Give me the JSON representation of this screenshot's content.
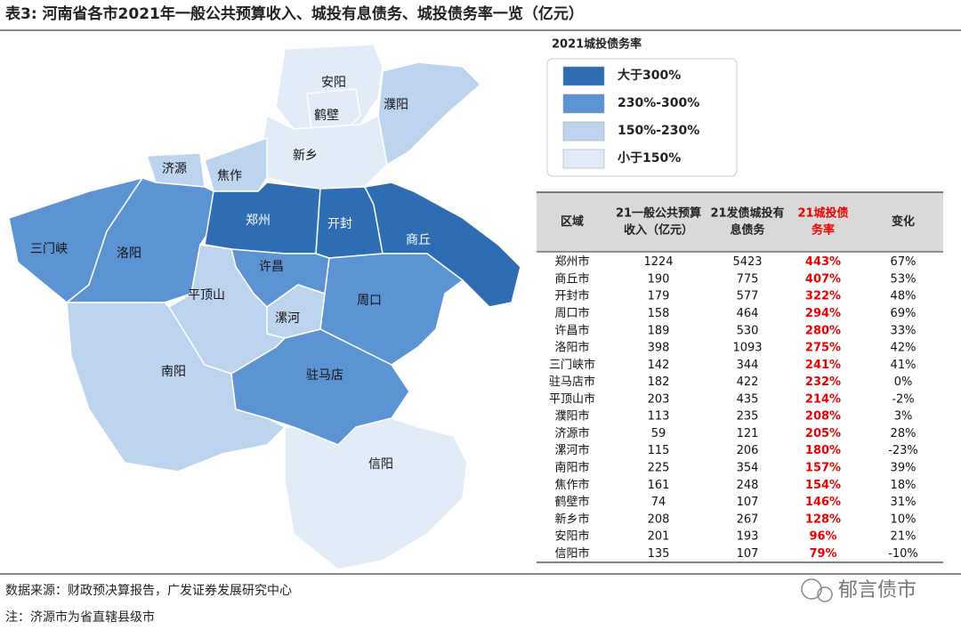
{
  "title": "表3: 河南省各市2021年一般公共预算收入、城投有息债务、城投债务率一览（亿元）",
  "legend": {
    "title": "2021城投债务率",
    "items": [
      {
        "label": "大于300%",
        "color": "#2e6db4"
      },
      {
        "label": "230%-300%",
        "color": "#5b93d3"
      },
      {
        "label": "150%-230%",
        "color": "#bcd4ee"
      },
      {
        "label": "小于150%",
        "color": "#e1ecf8"
      }
    ]
  },
  "regions": [
    {
      "label": "安阳",
      "color": "#e1ecf8"
    },
    {
      "label": "鹤壁",
      "color": "#e1ecf8"
    },
    {
      "label": "濮阳",
      "color": "#bcd4ee"
    },
    {
      "label": "新乡",
      "color": "#e1ecf8"
    },
    {
      "label": "焦作",
      "color": "#bcd4ee"
    },
    {
      "label": "济源",
      "color": "#bcd4ee"
    },
    {
      "label": "三门峡",
      "color": "#5b93d3"
    },
    {
      "label": "洛阳",
      "color": "#5b93d3"
    },
    {
      "label": "郑州",
      "color": "#2e6db4"
    },
    {
      "label": "开封",
      "color": "#2e6db4"
    },
    {
      "label": "商丘",
      "color": "#2e6db4"
    },
    {
      "label": "许昌",
      "color": "#5b93d3"
    },
    {
      "label": "漯河",
      "color": "#bcd4ee"
    },
    {
      "label": "周口",
      "color": "#5b93d3"
    },
    {
      "label": "平顶山",
      "color": "#bcd4ee"
    },
    {
      "label": "南阳",
      "color": "#bcd4ee"
    },
    {
      "label": "驻马店",
      "color": "#5b93d3"
    },
    {
      "label": "信阳",
      "color": "#e1ecf8"
    }
  ],
  "table": {
    "header": [
      [
        "区域"
      ],
      [
        "21一般公共预算",
        "收入（亿元）"
      ],
      [
        "21发债城投有",
        "息债务"
      ],
      [
        "21城投债",
        "务率"
      ],
      [
        "变化"
      ]
    ],
    "rows": [
      [
        "郑州市",
        "1224",
        "5423",
        "443%",
        "67%"
      ],
      [
        "商丘市",
        "190",
        "775",
        "407%",
        "53%"
      ],
      [
        "开封市",
        "179",
        "577",
        "322%",
        "48%"
      ],
      [
        "周口市",
        "158",
        "464",
        "294%",
        "69%"
      ],
      [
        "许昌市",
        "189",
        "530",
        "280%",
        "33%"
      ],
      [
        "洛阳市",
        "398",
        "1093",
        "275%",
        "42%"
      ],
      [
        "三门峡市",
        "142",
        "344",
        "241%",
        "41%"
      ],
      [
        "驻马店市",
        "182",
        "422",
        "232%",
        "0%"
      ],
      [
        "平顶山市",
        "203",
        "435",
        "214%",
        "-2%"
      ],
      [
        "濮阳市",
        "113",
        "235",
        "208%",
        "3%"
      ],
      [
        "济源市",
        "59",
        "121",
        "205%",
        "28%"
      ],
      [
        "漯河市",
        "115",
        "206",
        "180%",
        "-23%"
      ],
      [
        "南阳市",
        "225",
        "354",
        "157%",
        "39%"
      ],
      [
        "焦作市",
        "161",
        "248",
        "154%",
        "18%"
      ],
      [
        "鹤壁市",
        "74",
        "107",
        "146%",
        "31%"
      ],
      [
        "新乡市",
        "208",
        "267",
        "128%",
        "10%"
      ],
      [
        "安阳市",
        "201",
        "193",
        "96%",
        "21%"
      ],
      [
        "信阳市",
        "135",
        "107",
        "79%",
        "-10%"
      ]
    ]
  },
  "source": "数据来源：财政预决算报告，广发证券发展研究中心",
  "note": "注：济源市为省直辖县级市",
  "watermark": "郁言债市"
}
